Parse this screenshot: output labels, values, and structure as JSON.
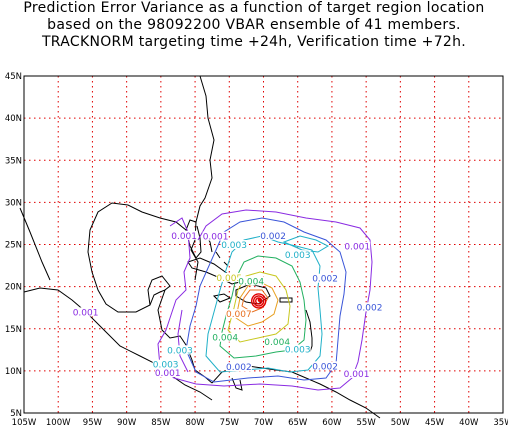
{
  "title": {
    "line1": "Prediction Error Variance as a function of target region location",
    "line2": "based on the 98092200 VBAR ensemble of 41 members.",
    "line3": "TRACKNORM targeting time +24h, Verification time +72h."
  },
  "axes": {
    "lon_range": [
      -105,
      -35
    ],
    "lat_range": [
      5,
      45
    ],
    "x_ticks": [
      "105W",
      "100W",
      "95W",
      "90W",
      "85W",
      "80W",
      "75W",
      "70W",
      "65W",
      "60W",
      "55W",
      "50W",
      "45W",
      "40W",
      "35W"
    ],
    "y_ticks": [
      "5N",
      "10N",
      "15N",
      "20N",
      "25N",
      "30N",
      "35N",
      "40N",
      "45N"
    ],
    "grid": true,
    "grid_color": "#e00000"
  },
  "contour_colors": {
    "0.001": "#8a2be2",
    "0.002": "#3a55d8",
    "0.003": "#20b0c8",
    "0.004": "#22b060",
    "0.005": "#c8c820",
    "0.006": "#e8a020",
    "0.007": "#e87020",
    "0.008": "#e00000"
  },
  "contour_labels": [
    {
      "text": "0.001",
      "lon": -81.6,
      "lat": 25.8,
      "level": "0.001"
    },
    {
      "text": "0.001",
      "lon": -77.0,
      "lat": 25.7,
      "level": "0.001"
    },
    {
      "text": "0.002",
      "lon": -68.6,
      "lat": 25.8,
      "level": "0.002"
    },
    {
      "text": "0.003",
      "lon": -74.3,
      "lat": 24.7,
      "level": "0.003"
    },
    {
      "text": "0.003",
      "lon": -65.0,
      "lat": 23.5,
      "level": "0.003"
    },
    {
      "text": "0.001",
      "lon": -56.3,
      "lat": 24.5,
      "level": "0.001"
    },
    {
      "text": "0.005",
      "lon": -75.0,
      "lat": 20.8,
      "level": "0.005"
    },
    {
      "text": "0.004",
      "lon": -71.8,
      "lat": 20.4,
      "level": "0.004"
    },
    {
      "text": "0.002",
      "lon": -61.0,
      "lat": 20.7,
      "level": "0.002"
    },
    {
      "text": "0.001",
      "lon": -96.0,
      "lat": 16.7,
      "level": "0.001"
    },
    {
      "text": "0.007",
      "lon": -73.6,
      "lat": 16.5,
      "level": "0.007"
    },
    {
      "text": "0.002",
      "lon": -54.5,
      "lat": 17.3,
      "level": "0.002"
    },
    {
      "text": "0.004",
      "lon": -75.6,
      "lat": 13.7,
      "level": "0.004"
    },
    {
      "text": "0.004",
      "lon": -68.0,
      "lat": 13.2,
      "level": "0.004"
    },
    {
      "text": "0.003",
      "lon": -82.2,
      "lat": 12.2,
      "level": "0.003"
    },
    {
      "text": "0.003",
      "lon": -65.0,
      "lat": 12.3,
      "level": "0.003"
    },
    {
      "text": "0.003",
      "lon": -84.3,
      "lat": 10.5,
      "level": "0.003"
    },
    {
      "text": "0.002",
      "lon": -73.6,
      "lat": 10.2,
      "level": "0.002"
    },
    {
      "text": "0.002",
      "lon": -61.0,
      "lat": 10.3,
      "level": "0.002"
    },
    {
      "text": "0.001",
      "lon": -84.0,
      "lat": 9.5,
      "level": "0.001"
    },
    {
      "text": "0.001",
      "lon": -56.4,
      "lat": 9.4,
      "level": "0.001"
    }
  ],
  "peak_region": {
    "lon": -70.7,
    "lat": 18.3,
    "level": "0.008"
  }
}
